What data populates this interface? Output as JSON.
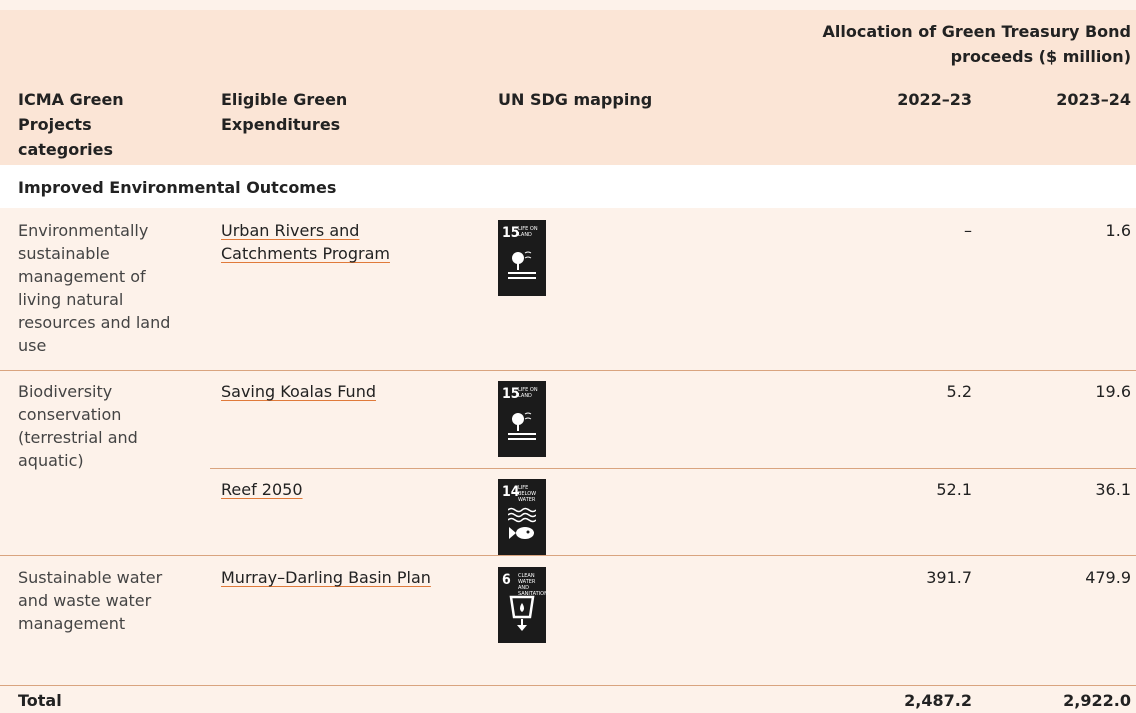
{
  "header": {
    "group_title": "Allocation of Green Treasury Bond proceeds ($ million)",
    "columns": [
      "ICMA Green Projects categories",
      "Eligible Green Expenditures",
      "UN SDG mapping",
      "2022–23",
      "2023–24"
    ]
  },
  "section": "Improved Environmental Outcomes",
  "rows": [
    {
      "category": "Environmentally sustainable management of living natural resources and land use",
      "expenditure": "Urban Rivers and Catchments Program",
      "sdg": {
        "number": "15",
        "label": "LIFE ON LAND"
      },
      "values": [
        "–",
        "1.6"
      ]
    },
    {
      "category": "Biodiversity conservation (terrestrial and aquatic)",
      "expenditure": "Saving Koalas Fund",
      "sdg": {
        "number": "15",
        "label": "LIFE ON LAND"
      },
      "values": [
        "5.2",
        "19.6"
      ]
    },
    {
      "category": null,
      "expenditure": "Reef 2050",
      "sdg": {
        "number": "14",
        "label": "LIFE BELOW WATER"
      },
      "values": [
        "52.1",
        "36.1"
      ]
    },
    {
      "category": "Sustainable water and waste water management",
      "expenditure": "Murray–Darling Basin Plan",
      "sdg": {
        "number": "6",
        "label": "CLEAN WATER AND SANITATION"
      },
      "values": [
        "391.7",
        "479.9"
      ]
    }
  ],
  "total": {
    "label": "Total",
    "values": [
      "2,487.2",
      "2,922.0"
    ]
  }
}
